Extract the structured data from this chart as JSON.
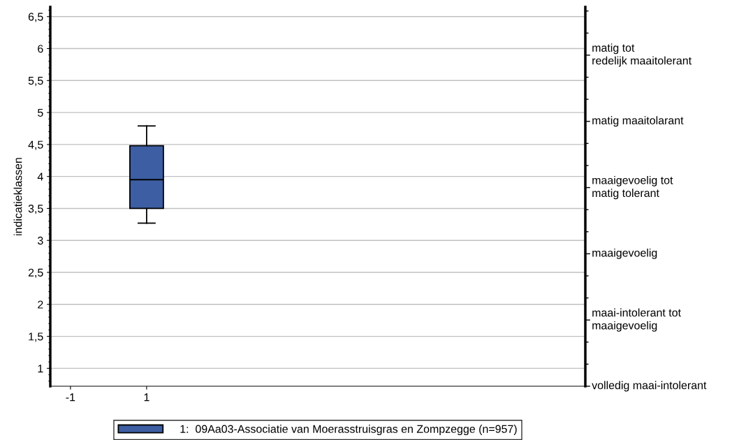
{
  "chart_data": {
    "type": "box",
    "ylabel": "indicatieklassen",
    "x": [
      1
    ],
    "series": [
      {
        "name": "1:  09Aa03-Associatie van Moerasstruisgras en Zompzegge (n=957)",
        "color": "#3d5ea3",
        "boxes": [
          {
            "low": 3.27,
            "q1": 3.5,
            "median": 3.95,
            "q3": 4.48,
            "high": 4.79
          }
        ]
      }
    ],
    "xlim": [
      -1.53,
      12.52
    ],
    "xticks": [
      -1,
      1
    ],
    "ylim": [
      0.72,
      6.65
    ],
    "yticks": [
      1,
      {
        "value": 1.5,
        "label": "1,5"
      },
      2,
      {
        "value": 2.5,
        "label": "2,5"
      },
      3,
      {
        "value": 3.5,
        "label": "3,5"
      },
      4,
      {
        "value": 4.5,
        "label": "4,5"
      },
      5,
      {
        "value": 5.5,
        "label": "5,5"
      },
      6,
      {
        "value": 6.5,
        "label": "6,5"
      }
    ],
    "annotations": [
      "matig tot\nredelijk maaitolerant",
      "matig maaitolarant",
      "maaigevoelig tot\nmatig tolerant",
      "maaigevoelig",
      "maai-intolerant tot\nmaaigevoelig",
      "volledig maai-intolerant"
    ],
    "grid": "y",
    "legend": "bottom"
  }
}
